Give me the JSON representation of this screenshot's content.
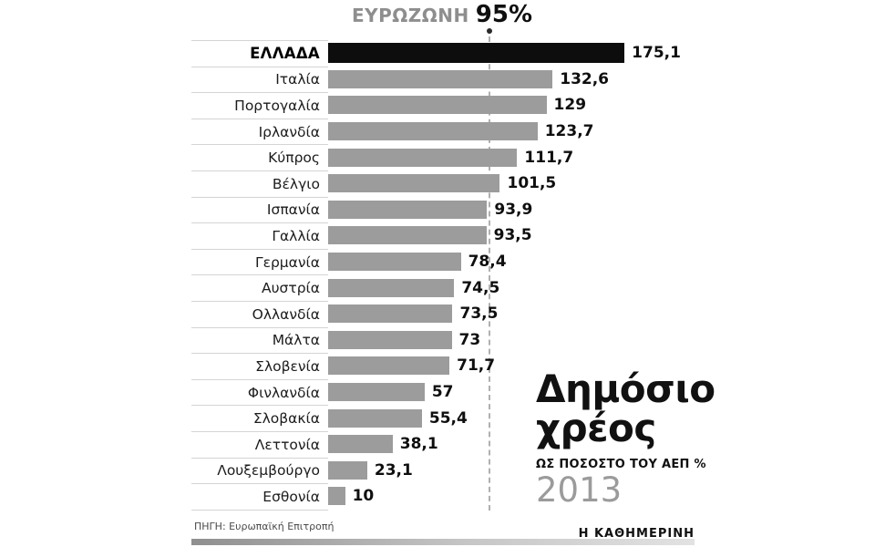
{
  "header": {
    "eurozone_label": "ΕΥΡΩΖΩΝΗ",
    "eurozone_value": "95%"
  },
  "chart_data": {
    "type": "bar",
    "orientation": "horizontal",
    "title": "Δημόσιο χρέος",
    "subtitle": "ΩΣ ΠΟΣΟΣΤΟ ΤΟΥ ΑΕΠ %",
    "year": "2013",
    "xlim": [
      0,
      185
    ],
    "grid": false,
    "reference_line": {
      "label": "ΕΥΡΩΖΩΝΗ",
      "value": 95,
      "display": "95%"
    },
    "categories": [
      "ΕΛΛΑΔΑ",
      "Ιταλία",
      "Πορτογαλία",
      "Ιρλανδία",
      "Κύπρος",
      "Βέλγιο",
      "Ισπανία",
      "Γαλλία",
      "Γερμανία",
      "Αυστρία",
      "Ολλανδία",
      "Μάλτα",
      "Σλοβενία",
      "Φινλανδία",
      "Σλοβακία",
      "Λεττονία",
      "Λουξεμβούργο",
      "Εσθονία"
    ],
    "values": [
      175.1,
      132.6,
      129,
      123.7,
      111.7,
      101.5,
      93.9,
      93.5,
      78.4,
      74.5,
      73.5,
      73,
      71.7,
      57,
      55.4,
      38.1,
      23.1,
      10
    ],
    "value_labels": [
      "175,1",
      "132,6",
      "129",
      "123,7",
      "111,7",
      "101,5",
      "93,9",
      "93,5",
      "78,4",
      "74,5",
      "73,5",
      "73",
      "71,7",
      "57",
      "55,4",
      "38,1",
      "23,1",
      "10"
    ],
    "highlight_index": 0,
    "bar_color": "#9c9c9c",
    "highlight_color": "#0d0d0d"
  },
  "annotation": {
    "title_line1": "Δημόσιο",
    "title_line2": "χρέος",
    "subtitle": "ΩΣ ΠΟΣΟΣΤΟ ΤΟΥ ΑΕΠ %",
    "year": "2013"
  },
  "footer": {
    "source": "ΠΗΓΗ: Ευρωπαϊκή Επιτροπή",
    "brand": "Η ΚΑΘΗΜΕΡΙΝΗ"
  }
}
